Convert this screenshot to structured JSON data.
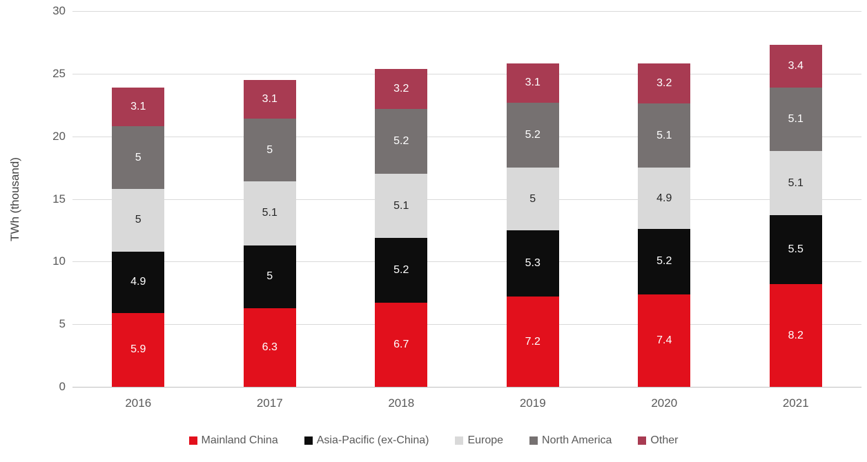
{
  "chart_data": {
    "type": "bar",
    "stacked": true,
    "title": "",
    "xlabel": "",
    "ylabel": "TWh (thousand)",
    "ylim": [
      0,
      30
    ],
    "yticks": [
      0,
      5,
      10,
      15,
      20,
      25,
      30
    ],
    "grid": "horizontal",
    "legend_position": "bottom",
    "categories": [
      "2016",
      "2017",
      "2018",
      "2019",
      "2020",
      "2021"
    ],
    "series": [
      {
        "name": "Mainland China",
        "color": "#e2101c",
        "label_color": "#ffffff",
        "values": [
          5.9,
          6.3,
          6.7,
          7.2,
          7.4,
          8.2
        ]
      },
      {
        "name": "Asia-Pacific (ex-China)",
        "color": "#0d0d0d",
        "label_color": "#ffffff",
        "values": [
          4.9,
          5,
          5.2,
          5.3,
          5.2,
          5.5
        ]
      },
      {
        "name": "Europe",
        "color": "#d9d9d9",
        "label_color": "#262626",
        "values": [
          5,
          5.1,
          5.1,
          5,
          4.9,
          5.1
        ]
      },
      {
        "name": "North America",
        "color": "#767171",
        "label_color": "#ffffff",
        "values": [
          5,
          5,
          5.2,
          5.2,
          5.1,
          5.1
        ]
      },
      {
        "name": "Other",
        "color": "#a83b52",
        "label_color": "#ffffff",
        "values": [
          3.1,
          3.1,
          3.2,
          3.1,
          3.2,
          3.4
        ]
      }
    ],
    "colors": {
      "gridline": "#d9d9d9",
      "baseline": "#bfbfbf",
      "axis_text": "#595959",
      "axis_title_text": "#404040",
      "background": "#ffffff"
    }
  }
}
